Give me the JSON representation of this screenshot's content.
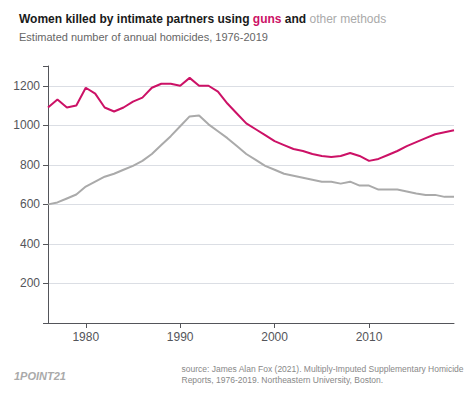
{
  "chart_data": {
    "type": "line",
    "title_parts": [
      {
        "text": "Women killed by intimate partners using ",
        "color": "#1a1a1a"
      },
      {
        "text": "guns",
        "color": "#cc1166"
      },
      {
        "text": " and ",
        "color": "#1a1a1a"
      },
      {
        "text": "other methods",
        "color": "#aaaaaa"
      }
    ],
    "subtitle": "Estimated number of annual homicides, 1976-2019",
    "source": "source: James Alan Fox (2021). Multiply-Imputed Supplementary Homicide\nReports, 1976-2019. Northeastern University, Boston.",
    "logo": "1POINT21",
    "x": [
      1976,
      1977,
      1978,
      1979,
      1980,
      1981,
      1982,
      1983,
      1984,
      1985,
      1986,
      1987,
      1988,
      1989,
      1990,
      1991,
      1992,
      1993,
      1994,
      1995,
      1996,
      1997,
      1998,
      1999,
      2000,
      2001,
      2002,
      2003,
      2004,
      2005,
      2006,
      2007,
      2008,
      2009,
      2010,
      2011,
      2012,
      2013,
      2014,
      2015,
      2016,
      2017,
      2018,
      2019
    ],
    "series": [
      {
        "color": "#aaaaaa",
        "values": [
          600,
          610,
          630,
          650,
          690,
          715,
          740,
          755,
          775,
          795,
          820,
          855,
          900,
          945,
          995,
          1045,
          1050,
          1005,
          970,
          935,
          895,
          855,
          825,
          795,
          775,
          755,
          745,
          735,
          725,
          715,
          715,
          705,
          715,
          695,
          695,
          675,
          675,
          675,
          665,
          655,
          648,
          648,
          638,
          638
        ]
      },
      {
        "color": "#cc1166",
        "values": [
          1090,
          1130,
          1090,
          1100,
          1190,
          1160,
          1090,
          1070,
          1090,
          1120,
          1140,
          1190,
          1210,
          1210,
          1200,
          1240,
          1200,
          1200,
          1170,
          1110,
          1060,
          1010,
          980,
          950,
          920,
          900,
          880,
          870,
          855,
          845,
          840,
          845,
          860,
          845,
          820,
          830,
          850,
          870,
          895,
          915,
          935,
          955,
          965,
          975
        ]
      }
    ],
    "xlim": [
      1976,
      2019
    ],
    "ylim": [
      0,
      1300
    ],
    "xticks": [
      1980,
      1990,
      2000,
      2010
    ],
    "yticks": [
      200,
      400,
      600,
      800,
      1000,
      1200
    ],
    "grid": true
  }
}
